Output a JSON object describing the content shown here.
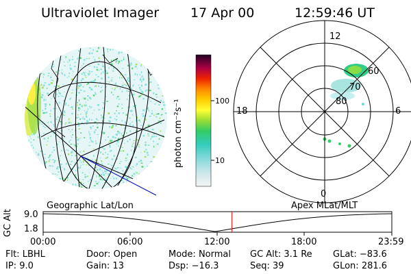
{
  "header": {
    "instrument": "Ultraviolet Imager",
    "date": "17 Apr 00",
    "time": "12:59:46 UT"
  },
  "colorbar": {
    "label": "photon cm⁻²s⁻¹",
    "ticks": [
      "100",
      "10"
    ]
  },
  "polar": {
    "clock_labels": [
      "12",
      "18",
      "6",
      "0"
    ],
    "lat_labels": [
      "60",
      "70",
      "80"
    ]
  },
  "orbit": {
    "left_caption": "Geographic Lat/Lon",
    "right_caption": "Apex MLat/MLT",
    "axis_label": "GC Alt",
    "y_ticks": [
      "9.0",
      "1.8"
    ],
    "x_ticks": [
      "00:00",
      "06:00",
      "12:00",
      "18:00",
      "23:59"
    ],
    "current_time_fraction": 0.5415
  },
  "footer": {
    "row1": [
      {
        "label": "Flt:",
        "value": "LBHL"
      },
      {
        "label": "Door:",
        "value": "Open"
      },
      {
        "label": "Mode:",
        "value": "Normal"
      },
      {
        "label": "GC Alt:",
        "value": "3.1 Re"
      },
      {
        "label": "GLat:",
        "value": "−83.6"
      }
    ],
    "row2": [
      {
        "label": "IP:",
        "value": "9.0"
      },
      {
        "label": "Gain:",
        "value": "13"
      },
      {
        "label": "Dsp:",
        "value": "−16.3"
      },
      {
        "label": "Seq:",
        "value": "39"
      },
      {
        "label": "GLon:",
        "value": "281.6"
      }
    ]
  },
  "colors": {
    "background": "#ffffff",
    "cursor": "#ff0000",
    "track": "#0000cc"
  }
}
